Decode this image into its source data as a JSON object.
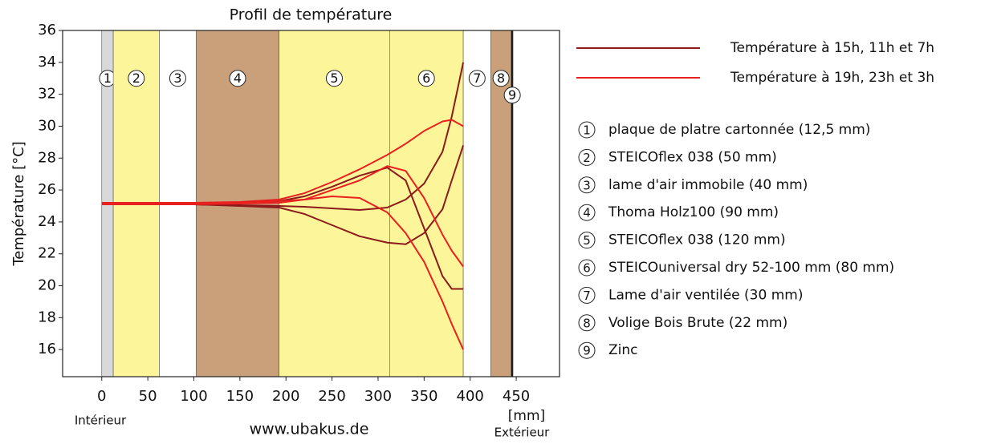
{
  "chart_data": {
    "type": "line",
    "title": "Profil de température",
    "ylabel": "Température [°C]",
    "xunit": "[mm]",
    "inside_label": "Intérieur",
    "outside_label": "Extérieur",
    "source": "www.ubakus.de",
    "xlim": [
      -42.5,
      497
    ],
    "ylim": [
      14.3,
      36
    ],
    "xticks": [
      0,
      50,
      100,
      150,
      200,
      250,
      300,
      350,
      400,
      450
    ],
    "yticks": [
      16,
      18,
      20,
      22,
      24,
      26,
      28,
      30,
      32,
      34,
      36
    ],
    "x": [
      0,
      50,
      100,
      150,
      192.5,
      220,
      250,
      280,
      310,
      330,
      350,
      370,
      380,
      392.5
    ],
    "series": [
      {
        "name": "Température à 15h, 11h et 7h",
        "color": "#8b1a1a",
        "values": [
          [
            25.1,
            25.1,
            25.1,
            25.05,
            25.0,
            24.95,
            24.85,
            24.75,
            24.9,
            25.4,
            26.4,
            28.4,
            30.6,
            34.0
          ],
          [
            25.1,
            25.1,
            25.1,
            25.0,
            24.9,
            24.5,
            23.8,
            23.1,
            22.7,
            22.6,
            23.3,
            24.8,
            26.6,
            28.8
          ],
          [
            25.2,
            25.2,
            25.2,
            25.2,
            25.3,
            25.6,
            26.2,
            26.9,
            27.4,
            26.6,
            23.6,
            20.6,
            19.8,
            19.8
          ]
        ]
      },
      {
        "name": "Température à 19h, 23h et 3h",
        "color": "#e8201f",
        "values": [
          [
            25.2,
            25.2,
            25.2,
            25.25,
            25.4,
            25.8,
            26.5,
            27.3,
            28.2,
            28.9,
            29.7,
            30.3,
            30.4,
            30.0
          ],
          [
            25.15,
            25.15,
            25.15,
            25.2,
            25.3,
            25.4,
            26.0,
            26.6,
            27.5,
            27.2,
            25.5,
            23.2,
            22.2,
            21.2
          ],
          [
            25.1,
            25.1,
            25.1,
            25.15,
            25.2,
            25.4,
            25.6,
            25.5,
            24.6,
            23.3,
            21.5,
            19.0,
            17.6,
            16.0
          ]
        ]
      }
    ],
    "layers": [
      {
        "number": "1",
        "label": "plaque de platre cartonnée (12,5 mm)",
        "start": 0,
        "end": 12.5,
        "color": "#d9d9d9"
      },
      {
        "number": "2",
        "label": "STEICOflex 038 (50 mm)",
        "start": 12.5,
        "end": 62.5,
        "color": "#fdf59a"
      },
      {
        "number": "3",
        "label": "lame d'air immobile (40 mm)",
        "start": 62.5,
        "end": 102.5,
        "color": "#ffffff"
      },
      {
        "number": "4",
        "label": "Thoma Holz100 (90 mm)",
        "start": 102.5,
        "end": 192.5,
        "color": "#c9a07a"
      },
      {
        "number": "5",
        "label": "STEICOflex 038 (120 mm)",
        "start": 192.5,
        "end": 312.5,
        "color": "#fdf59a"
      },
      {
        "number": "6",
        "label": "STEICOuniversal dry 52-100 mm (80 mm)",
        "start": 312.5,
        "end": 392.5,
        "color": "#fdf59a"
      },
      {
        "number": "7",
        "label": "Lame d'air ventilée (30 mm)",
        "start": 392.5,
        "end": 422.5,
        "color": "#ffffff"
      },
      {
        "number": "8",
        "label": "Volige Bois Brute (22 mm)",
        "start": 422.5,
        "end": 444.5,
        "color": "#c9a07a"
      },
      {
        "number": "9",
        "label": "Zinc",
        "start": 444.5,
        "end": 446.5,
        "color": "#111111"
      }
    ]
  }
}
